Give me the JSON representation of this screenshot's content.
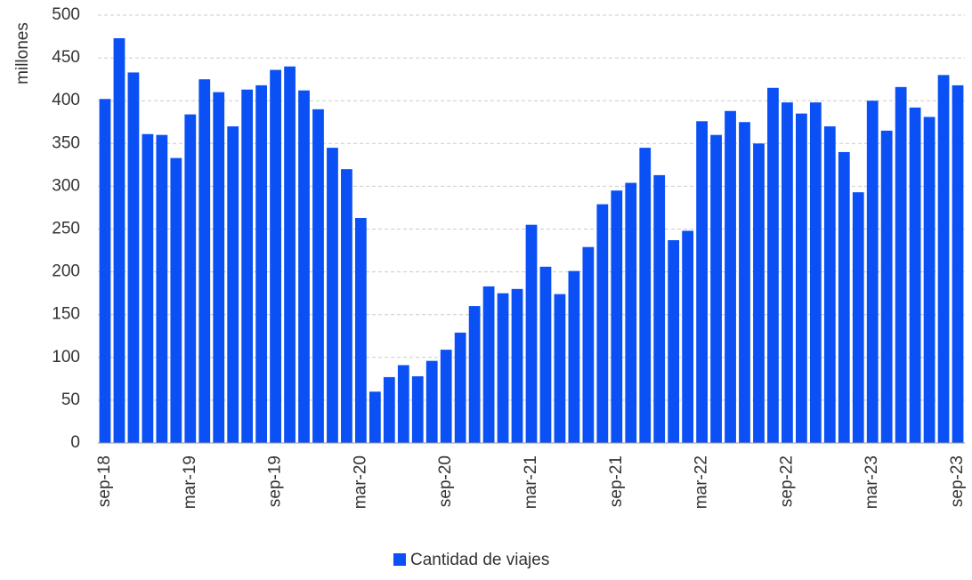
{
  "chart_data": {
    "type": "bar",
    "y_axis_label": "millones",
    "categories": [
      "sep-18",
      null,
      null,
      null,
      null,
      null,
      "mar-19",
      null,
      null,
      null,
      null,
      null,
      "sep-19",
      null,
      null,
      null,
      null,
      null,
      "mar-20",
      null,
      null,
      null,
      null,
      null,
      "sep-20",
      null,
      null,
      null,
      null,
      null,
      "mar-21",
      null,
      null,
      null,
      null,
      null,
      "sep-21",
      null,
      null,
      null,
      null,
      null,
      "mar-22",
      null,
      null,
      null,
      null,
      null,
      "sep-22",
      null,
      null,
      null,
      null,
      null,
      "mar-23",
      null,
      null,
      null,
      null,
      null,
      "sep-23"
    ],
    "series": [
      {
        "name": "Cantidad de viajes",
        "color": "#0a50f5",
        "values": [
          402,
          473,
          433,
          361,
          360,
          333,
          384,
          425,
          410,
          370,
          413,
          418,
          436,
          440,
          412,
          390,
          345,
          320,
          263,
          60,
          77,
          91,
          78,
          96,
          109,
          129,
          160,
          183,
          175,
          180,
          255,
          206,
          174,
          201,
          229,
          279,
          295,
          304,
          345,
          313,
          237,
          248,
          376,
          360,
          388,
          375,
          350,
          415,
          398,
          385,
          398,
          370,
          340,
          293,
          400,
          365,
          416,
          392,
          381,
          430,
          418
        ]
      }
    ],
    "ylim": [
      0,
      500
    ],
    "yticks": [
      0,
      50,
      100,
      150,
      200,
      250,
      300,
      350,
      400,
      450,
      500
    ],
    "grid": true,
    "legend": "bottom"
  }
}
